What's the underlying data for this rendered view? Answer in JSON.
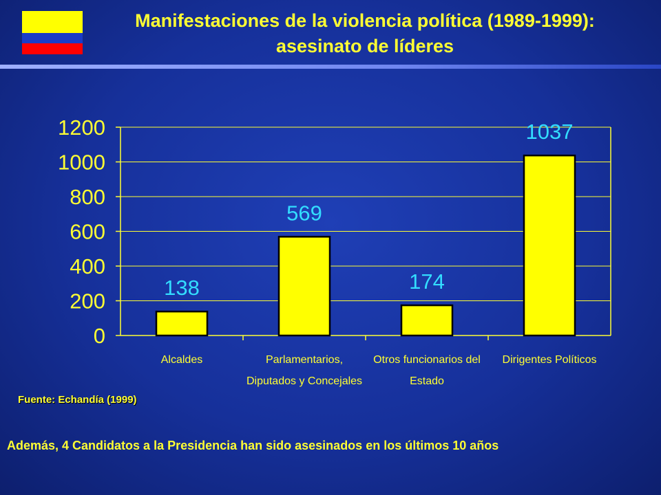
{
  "title_line1": "Manifestaciones de la violencia política (1989-1999):",
  "title_line2": "asesinato de líderes",
  "flag_colors": [
    "#ffff00",
    "#1a3cc8",
    "#ff0000"
  ],
  "chart_data": {
    "type": "bar",
    "categories": [
      [
        "Alcaldes"
      ],
      [
        "Parlamentarios,",
        "Diputados y Concejales"
      ],
      [
        "Otros funcionarios del",
        "Estado"
      ],
      [
        "Dirigentes Políticos"
      ]
    ],
    "values": [
      138,
      569,
      174,
      1037
    ],
    "data_labels": [
      "138",
      "569",
      "174",
      "1037"
    ],
    "y_ticks": [
      "0",
      "200",
      "400",
      "600",
      "800",
      "1000",
      "1200"
    ],
    "ylim": [
      0,
      1200
    ],
    "grid": true,
    "bar_color": "#ffff00",
    "axis_color": "#ffff33",
    "label_color": "#33ddff"
  },
  "source": "Fuente: Echandía (1999)",
  "note": "Además, 4 Candidatos a la Presidencia han sido asesinados en los últimos 10 años"
}
